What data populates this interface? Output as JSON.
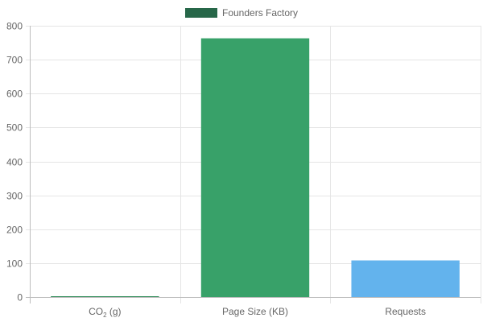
{
  "chart_data": {
    "type": "bar",
    "categories": [
      "CO2 (g)",
      "Page Size (KB)",
      "Requests"
    ],
    "category_display": [
      {
        "main": "CO",
        "sub": "2",
        "rest": " (g)"
      },
      {
        "main": "Page Size (KB)",
        "sub": "",
        "rest": ""
      },
      {
        "main": "Requests",
        "sub": "",
        "rest": ""
      }
    ],
    "series": [
      {
        "name": "Founders Factory",
        "values": [
          0.3,
          763,
          108
        ],
        "bar_colors": [
          "#2e8b57",
          "#38a169",
          "#63b3ed"
        ],
        "legend_color": "#276749"
      }
    ],
    "ylim": [
      0,
      800
    ],
    "yticks": [
      0,
      100,
      200,
      300,
      400,
      500,
      600,
      700,
      800
    ],
    "grid": true,
    "legend_position": "top-center"
  }
}
